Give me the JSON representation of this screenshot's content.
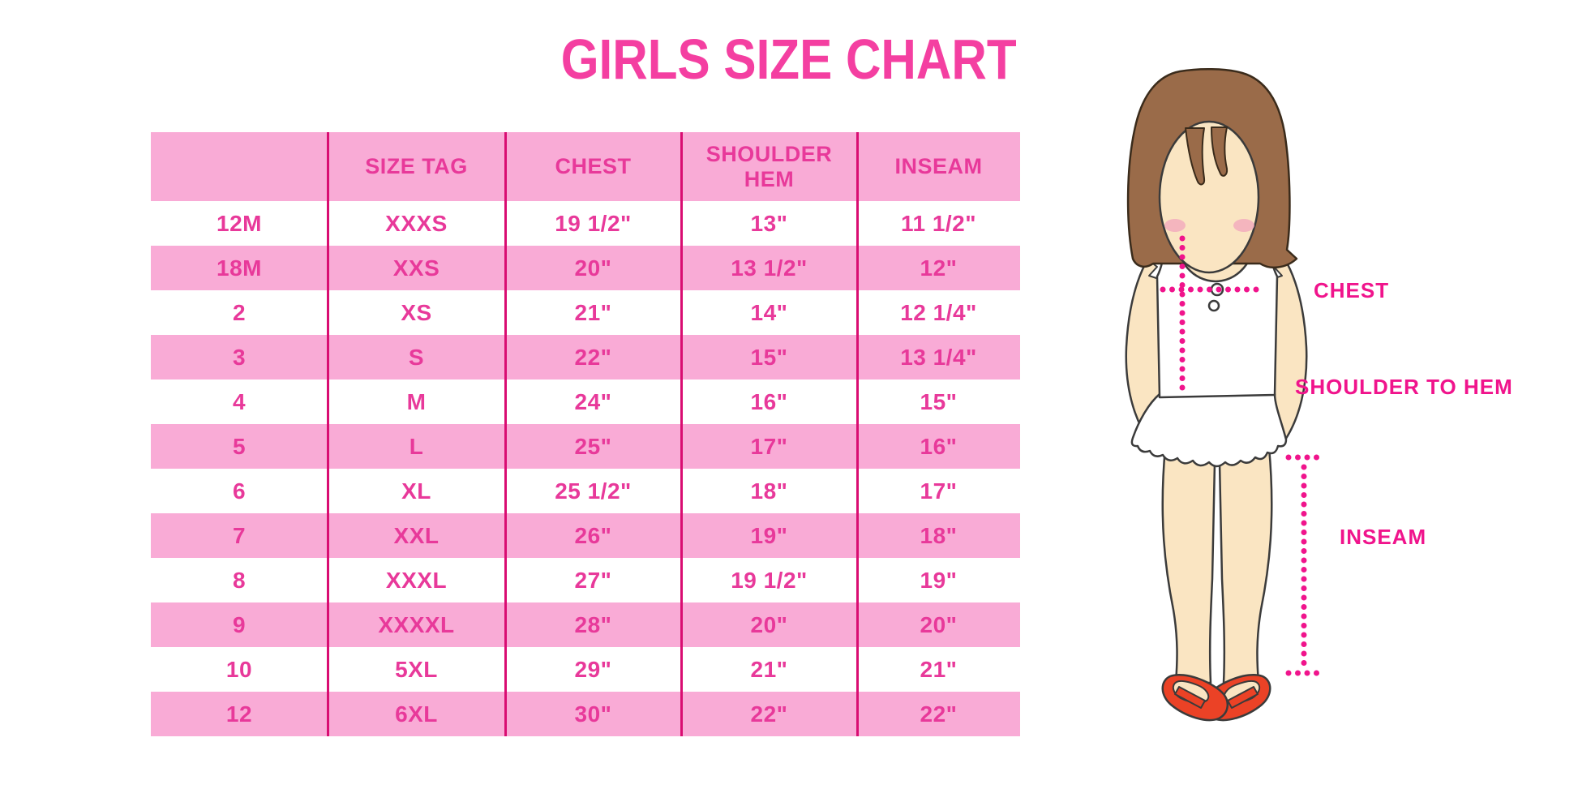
{
  "title": "GIRLS SIZE CHART",
  "chart_data": {
    "type": "table",
    "title": "GIRLS SIZE CHART",
    "columns": [
      "",
      "SIZE TAG",
      "CHEST",
      "SHOULDER HEM",
      "INSEAM"
    ],
    "rows": [
      [
        "12M",
        "XXXS",
        "19 1/2\"",
        "13\"",
        "11 1/2\""
      ],
      [
        "18M",
        "XXS",
        "20\"",
        "13 1/2\"",
        "12\""
      ],
      [
        "2",
        "XS",
        "21\"",
        "14\"",
        "12 1/4\""
      ],
      [
        "3",
        "S",
        "22\"",
        "15\"",
        "13 1/4\""
      ],
      [
        "4",
        "M",
        "24\"",
        "16\"",
        "15\""
      ],
      [
        "5",
        "L",
        "25\"",
        "17\"",
        "16\""
      ],
      [
        "6",
        "XL",
        "25 1/2\"",
        "18\"",
        "17\""
      ],
      [
        "7",
        "XXL",
        "26\"",
        "19\"",
        "18\""
      ],
      [
        "8",
        "XXXL",
        "27\"",
        "19 1/2\"",
        "19\""
      ],
      [
        "9",
        "XXXXL",
        "28\"",
        "20\"",
        "20\""
      ],
      [
        "10",
        "5XL",
        "29\"",
        "21\"",
        "21\""
      ],
      [
        "12",
        "6XL",
        "30\"",
        "22\"",
        "22\""
      ]
    ],
    "layout": {
      "striped": true,
      "stripe_order": "header pink, then rows alternate white/pink"
    }
  },
  "figure_labels": {
    "chest": "CHEST",
    "shoulder_to_hem": "SHOULDER TO HEM",
    "inseam": "INSEAM"
  },
  "colors": {
    "title_pink": "#F43FA1",
    "row_pink": "#F9ABD6",
    "text_pink": "#E8399A",
    "divider_pink": "#D90D72",
    "label_magenta": "#F0148C",
    "hair_brown": "#9A6B49",
    "hair_outline": "#3A2B1B",
    "skin": "#FAE5C2",
    "blush": "#F2A9BD",
    "shoe_red": "#EB4226",
    "figure_outline": "#3B3B3B"
  }
}
